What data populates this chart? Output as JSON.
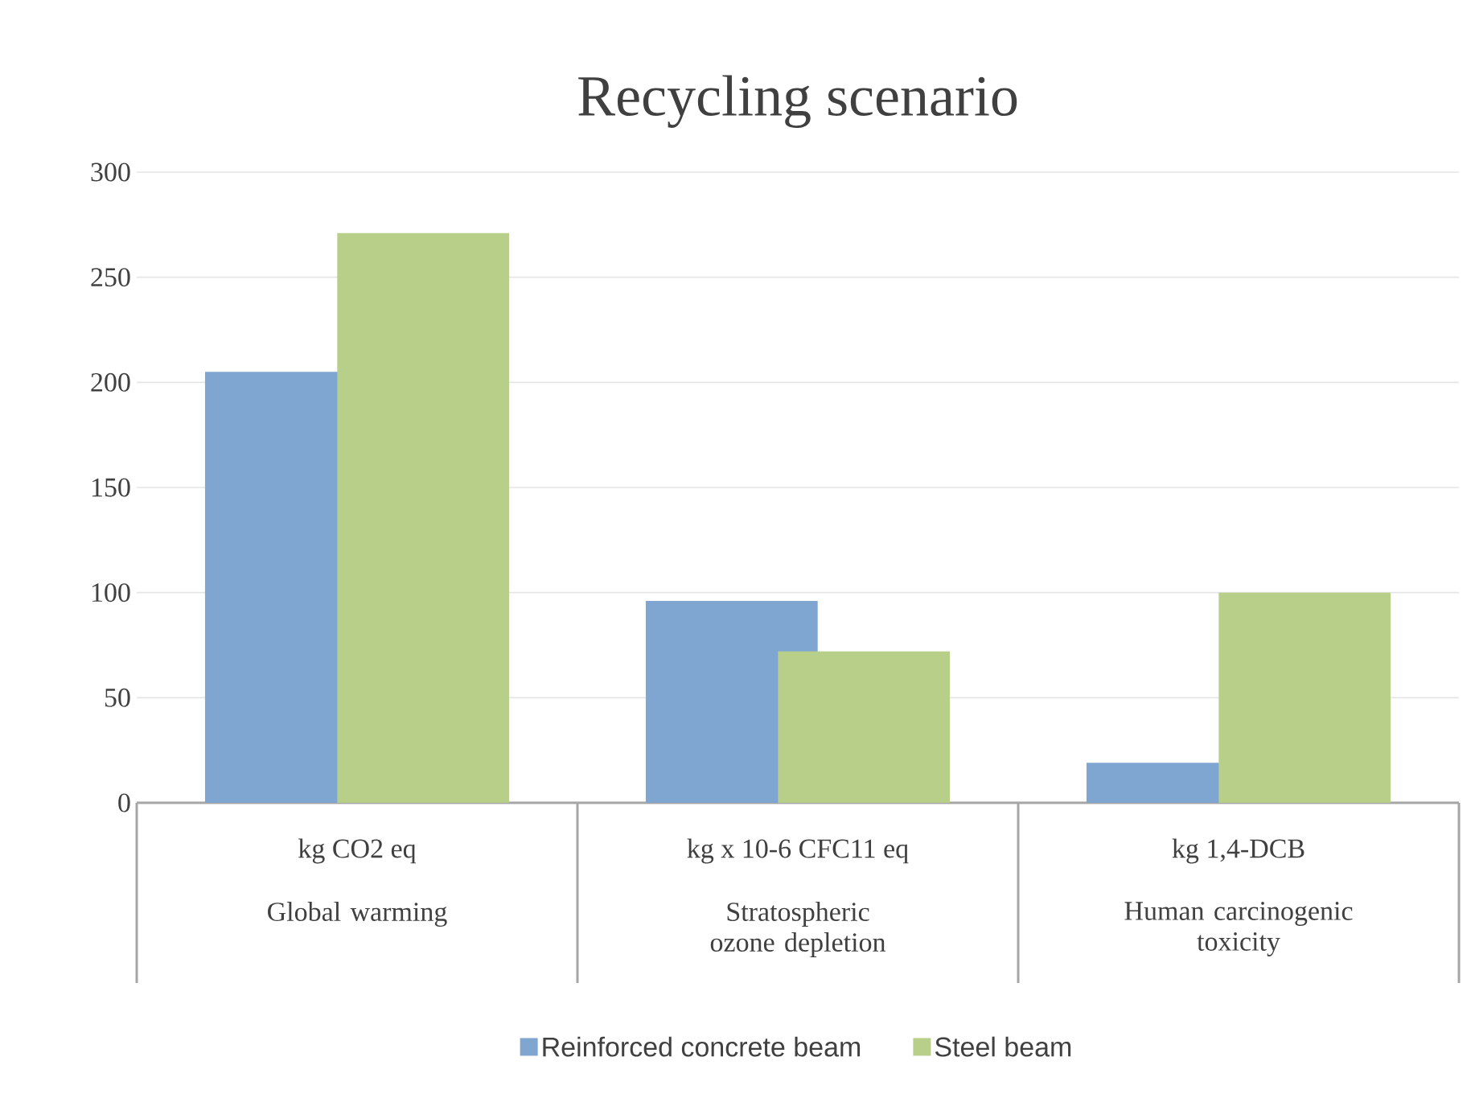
{
  "chart_data": {
    "type": "bar",
    "title": "Recycling scenario",
    "categories": [
      "Global warming",
      "Stratospheric ozone depletion",
      "Human carcinogenic toxicity"
    ],
    "annotations": [
      "kg CO2 eq",
      "kg x 10-6 CFC11 eq",
      "kg 1,4-DCB"
    ],
    "series": [
      {
        "name": "Reinforced concrete beam",
        "color": "#7fa5d1",
        "values": [
          205,
          96,
          19
        ]
      },
      {
        "name": "Steel beam",
        "color": "#b7cf88",
        "values": [
          271,
          72,
          100
        ]
      }
    ],
    "ylim": [
      0,
      300
    ],
    "yticks": [
      0,
      50,
      100,
      150,
      200,
      250,
      300
    ],
    "grid": "y",
    "legend": "bottom"
  }
}
